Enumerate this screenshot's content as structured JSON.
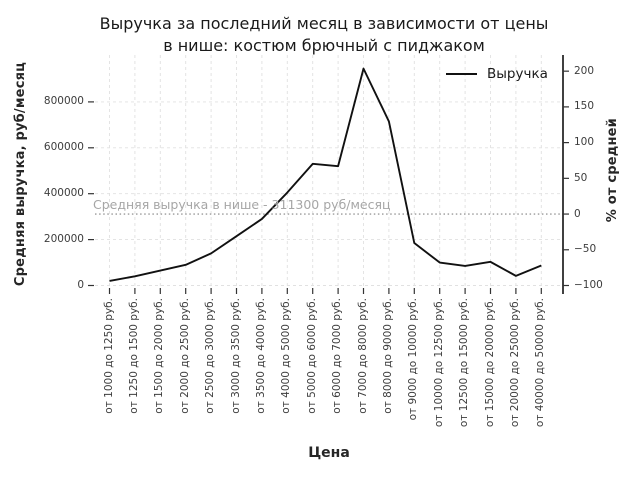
{
  "title": {
    "line1": "Выручка за последний месяц в зависимости от цены",
    "line2": "в нише: костюм брючный с пиджаком"
  },
  "legend": {
    "label": "Выручка"
  },
  "axes": {
    "x_label": "Цена",
    "y_left_label": "Средняя выручка, руб/месяц",
    "y_right_label": "% от средней",
    "y_left_tick_labels": [
      "0",
      "200000",
      "400000",
      "600000",
      "800000"
    ],
    "y_right_tick_labels": [
      "200",
      "150",
      "100",
      "50",
      "0",
      "−50",
      "−100"
    ]
  },
  "annotation": {
    "label": "Средняя выручка в нише - 311300 руб/месяц"
  },
  "chart_data": {
    "type": "line",
    "title": "Выручка за последний месяц в зависимости от цены в нише: костюм брючный с пиджаком",
    "xlabel": "Цена",
    "ylabel": "Средняя выручка, руб/месяц",
    "ylabel_secondary": "% от средней",
    "legend_position": "upper right",
    "grid": "dashed",
    "categories": [
      "от 1000 до 1250 руб.",
      "от 1250 до 1500 руб.",
      "от 1500 до 2000 руб.",
      "от 2000 до 2500 руб.",
      "от 2500 до 3000 руб.",
      "от 3000 до 3500 руб.",
      "от 3500 до 4000 руб.",
      "от 4000 до 5000 руб.",
      "от 5000 до 6000 руб.",
      "от 6000 до 7000 руб.",
      "от 7000 до 8000 руб.",
      "от 8000 до 9000 руб.",
      "от 9000 до 10000 руб.",
      "от 10000 до 12500 руб.",
      "от 12500 до 15000 руб.",
      "от 15000 до 20000 руб.",
      "от 20000 до 25000 руб.",
      "от 40000 до 50000 руб."
    ],
    "series": [
      {
        "name": "Выручка",
        "color": "#111111",
        "values": [
          20000,
          40000,
          65000,
          90000,
          140000,
          215000,
          290000,
          405000,
          530000,
          520000,
          945000,
          715000,
          185000,
          100000,
          85000,
          103000,
          42000,
          87000
        ]
      }
    ],
    "y_left": {
      "ticks": [
        0,
        200000,
        400000,
        600000,
        800000
      ],
      "lim": [
        0,
        1010000
      ]
    },
    "y_right": {
      "ticks": [
        200,
        150,
        100,
        50,
        0,
        -50,
        -100
      ],
      "unit": "%"
    },
    "average_line": {
      "value": 311300,
      "label": "Средняя выручка в нише - 311300 руб/месяц",
      "style": "dotted",
      "color": "#999999"
    }
  },
  "colors": {
    "line": "#111111",
    "grid": "#e1e1e1",
    "average_line": "#999999",
    "annotation_text": "#a6a6a6",
    "spine": "#000000",
    "tick": "#333333",
    "tick_text": "#3d3d3d",
    "title_text": "#1a1a1a"
  }
}
